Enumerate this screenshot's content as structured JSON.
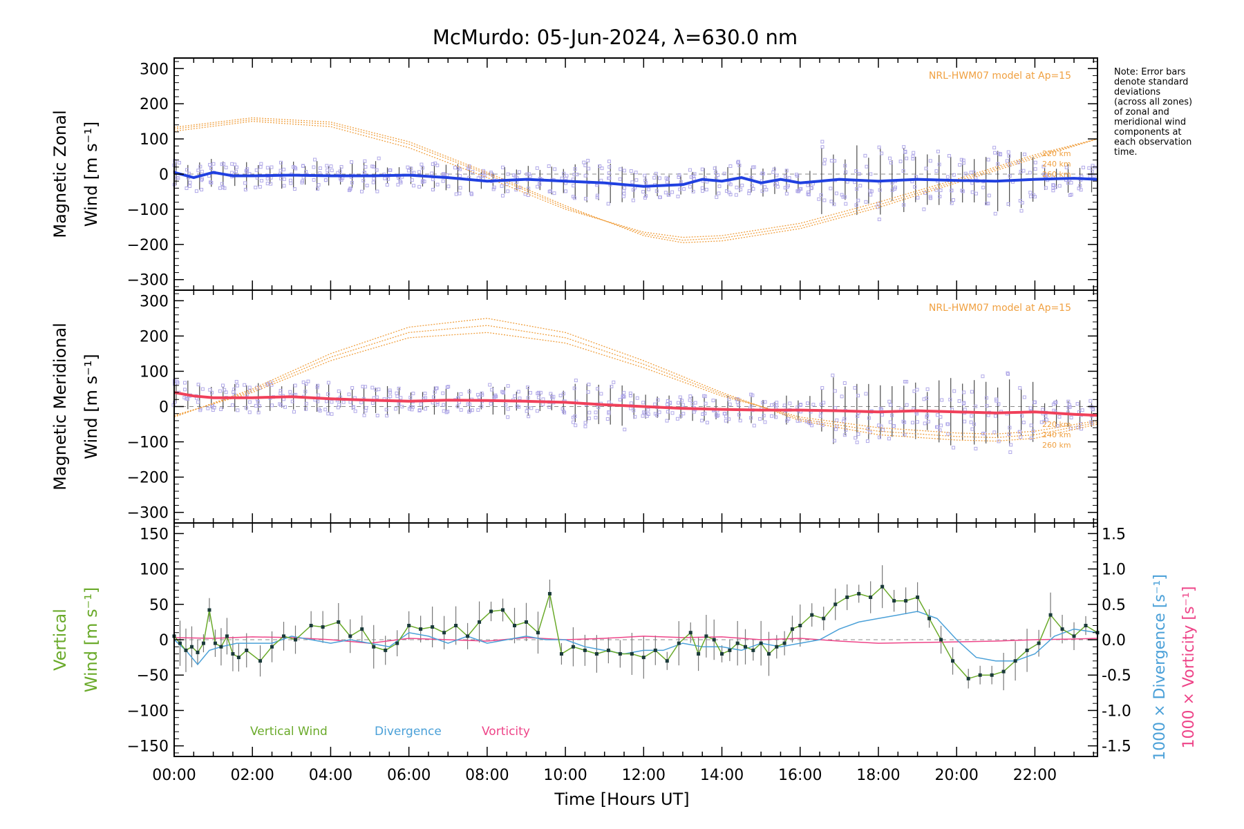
{
  "title": "McMurdo: 05-Jun-2024, λ=630.0 nm",
  "note": [
    "Note: Error bars",
    "denote standard",
    "deviations",
    "(across all zones)",
    "of zonal and",
    "meridional wind",
    "components at",
    "each observation",
    "time."
  ],
  "colors": {
    "model": "#f0a040",
    "zonal": "#2040e0",
    "meridional": "#f0405a",
    "scatter": "#b0a8e8",
    "errorbar": "#4a4a4a",
    "vertical": "#6aaa2a",
    "divergence": "#4aa0d8",
    "vorticity": "#ee4488"
  },
  "chart_data": [
    {
      "type": "line",
      "panel": "zonal",
      "ylabel": [
        "Magnetic Zonal",
        "Wind [m s⁻¹]"
      ],
      "ylim": [
        -330,
        330
      ],
      "yticks": [
        300,
        200,
        100,
        0,
        -100,
        -200,
        -300
      ],
      "xlim": [
        0,
        23.6
      ],
      "model_label": "NRL-HWM07 model at Ap=15",
      "model_altitudes": [
        "220 km",
        "240 km",
        "260 km"
      ],
      "model_curves": [
        {
          "altitude": "220 km",
          "x": [
            0,
            2,
            4,
            6,
            8,
            10,
            12,
            13,
            14,
            16,
            18,
            20,
            22,
            23.6
          ],
          "y": [
            122,
            150,
            135,
            75,
            -10,
            -100,
            -165,
            -180,
            -175,
            -140,
            -80,
            -15,
            55,
            100
          ]
        },
        {
          "altitude": "240 km",
          "x": [
            0,
            2,
            4,
            6,
            8,
            10,
            12,
            13,
            14,
            16,
            18,
            20,
            22,
            23.6
          ],
          "y": [
            128,
            155,
            142,
            85,
            0,
            -95,
            -170,
            -188,
            -182,
            -148,
            -88,
            -20,
            50,
            100
          ]
        },
        {
          "altitude": "260 km",
          "x": [
            0,
            2,
            4,
            6,
            8,
            10,
            12,
            13,
            14,
            16,
            18,
            20,
            22,
            23.6
          ],
          "y": [
            133,
            160,
            148,
            92,
            5,
            -90,
            -175,
            -195,
            -190,
            -155,
            -95,
            -25,
            45,
            100
          ]
        }
      ],
      "series": [
        {
          "name": "Zonal mean",
          "x": [
            0,
            0.5,
            1,
            1.5,
            2,
            3,
            4,
            5,
            6,
            7,
            8,
            9,
            10,
            11,
            12,
            13,
            13.5,
            14,
            14.5,
            15,
            15.5,
            16,
            16.5,
            17,
            18,
            19,
            20,
            21,
            22,
            23,
            23.6
          ],
          "y": [
            5,
            -10,
            5,
            -5,
            -5,
            -3,
            -5,
            -5,
            -3,
            -10,
            -20,
            -15,
            -20,
            -25,
            -35,
            -30,
            -15,
            -20,
            -10,
            -25,
            -15,
            -25,
            -20,
            -15,
            -20,
            -15,
            -18,
            -20,
            -15,
            -12,
            -15
          ]
        }
      ]
    },
    {
      "type": "line",
      "panel": "meridional",
      "ylabel": [
        "Magnetic Meridional",
        "Wind [m s⁻¹]"
      ],
      "ylim": [
        -330,
        330
      ],
      "yticks": [
        300,
        200,
        100,
        0,
        -100,
        -200,
        -300
      ],
      "xlim": [
        0,
        23.6
      ],
      "model_label": "NRL-HWM07 model at Ap=15",
      "model_altitudes": [
        "220 km",
        "240 km",
        "260 km"
      ],
      "model_curves": [
        {
          "altitude": "220 km",
          "x": [
            0,
            2,
            4,
            6,
            8,
            10,
            12,
            14,
            16,
            18,
            20,
            21,
            22,
            23.6
          ],
          "y": [
            -25,
            40,
            130,
            195,
            210,
            180,
            110,
            30,
            -30,
            -60,
            -75,
            -78,
            -70,
            -40
          ]
        },
        {
          "altitude": "240 km",
          "x": [
            0,
            2,
            4,
            6,
            8,
            10,
            12,
            14,
            16,
            18,
            20,
            21,
            22,
            23.6
          ],
          "y": [
            -28,
            45,
            140,
            210,
            230,
            195,
            120,
            35,
            -35,
            -70,
            -85,
            -88,
            -80,
            -45
          ]
        },
        {
          "altitude": "260 km",
          "x": [
            0,
            2,
            4,
            6,
            8,
            10,
            12,
            14,
            16,
            18,
            20,
            21,
            22,
            23.6
          ],
          "y": [
            -30,
            50,
            150,
            225,
            250,
            210,
            130,
            40,
            -40,
            -80,
            -95,
            -98,
            -90,
            -50
          ]
        }
      ],
      "series": [
        {
          "name": "Meridional mean",
          "x": [
            0,
            0.5,
            1,
            2,
            3,
            4,
            5,
            6,
            7,
            8,
            9,
            10,
            11,
            12,
            13,
            14,
            15,
            16,
            17,
            18,
            19,
            20,
            21,
            22,
            23,
            23.6
          ],
          "y": [
            40,
            30,
            25,
            25,
            28,
            22,
            18,
            15,
            18,
            17,
            15,
            12,
            5,
            0,
            -5,
            -8,
            -10,
            -10,
            -12,
            -15,
            -12,
            -15,
            -18,
            -15,
            -22,
            -25
          ]
        }
      ]
    },
    {
      "type": "line",
      "panel": "vertical",
      "ylabel": [
        "Vertical",
        "Wind [m s⁻¹]"
      ],
      "ylabel_right": [
        "1000 × Divergence [s⁻¹]",
        "1000 × Vorticity [s⁻¹]"
      ],
      "ylim": [
        -165,
        165
      ],
      "yticks": [
        150,
        100,
        50,
        0,
        -50,
        -100,
        -150
      ],
      "y2lim": [
        -1.65,
        1.65
      ],
      "y2ticks": [
        1.5,
        1.0,
        0.5,
        0.0,
        -0.5,
        -1.0,
        -1.5
      ],
      "xlim": [
        0,
        23.6
      ],
      "xticks": [
        "00:00",
        "02:00",
        "04:00",
        "06:00",
        "08:00",
        "10:00",
        "12:00",
        "14:00",
        "16:00",
        "18:00",
        "20:00",
        "22:00"
      ],
      "xtick_values": [
        0,
        2,
        4,
        6,
        8,
        10,
        12,
        14,
        16,
        18,
        20,
        22
      ],
      "xlabel": "Time [Hours UT]",
      "legend": [
        "Vertical Wind",
        "Divergence",
        "Vorticity"
      ],
      "series": [
        {
          "name": "Vertical Wind",
          "axis": "left",
          "x": [
            0,
            0.15,
            0.3,
            0.45,
            0.6,
            0.75,
            0.9,
            1.05,
            1.2,
            1.35,
            1.5,
            1.65,
            1.85,
            2.2,
            2.5,
            2.8,
            3.1,
            3.5,
            3.8,
            4.2,
            4.5,
            4.8,
            5.1,
            5.4,
            5.7,
            6.0,
            6.3,
            6.6,
            6.9,
            7.2,
            7.5,
            7.8,
            8.1,
            8.4,
            8.7,
            9.0,
            9.3,
            9.6,
            9.9,
            10.2,
            10.5,
            10.8,
            11.1,
            11.4,
            11.7,
            12.0,
            12.3,
            12.6,
            12.9,
            13.2,
            13.4,
            13.6,
            13.8,
            14.0,
            14.2,
            14.4,
            14.6,
            14.8,
            15.0,
            15.2,
            15.4,
            15.6,
            15.8,
            16.0,
            16.3,
            16.6,
            16.9,
            17.2,
            17.5,
            17.8,
            18.1,
            18.4,
            18.7,
            19.0,
            19.3,
            19.6,
            19.9,
            20.3,
            20.6,
            20.9,
            21.2,
            21.5,
            21.8,
            22.1,
            22.4,
            22.7,
            23.0,
            23.3,
            23.6
          ],
          "y": [
            5,
            -5,
            -15,
            -10,
            -18,
            -5,
            42,
            -5,
            -10,
            5,
            -20,
            -25,
            -15,
            -30,
            -10,
            5,
            0,
            20,
            18,
            25,
            5,
            15,
            -10,
            -15,
            -5,
            20,
            15,
            18,
            10,
            20,
            5,
            25,
            40,
            42,
            20,
            25,
            10,
            65,
            -20,
            -10,
            -15,
            -20,
            -15,
            -20,
            -20,
            -25,
            -15,
            -30,
            -5,
            10,
            -20,
            5,
            0,
            -20,
            -15,
            -5,
            -10,
            -15,
            -5,
            -20,
            -10,
            -5,
            15,
            20,
            35,
            30,
            50,
            60,
            65,
            60,
            75,
            55,
            55,
            60,
            30,
            0,
            -30,
            -55,
            -50,
            -50,
            -45,
            -30,
            -15,
            -5,
            35,
            15,
            5,
            20,
            10
          ]
        },
        {
          "name": "Divergence",
          "axis": "right",
          "x": [
            0,
            0.3,
            0.6,
            0.9,
            1.2,
            1.6,
            2.0,
            2.5,
            3.0,
            3.5,
            4.0,
            4.5,
            5.0,
            5.5,
            6.0,
            6.5,
            7.0,
            7.5,
            8.0,
            8.5,
            9.0,
            9.5,
            10.0,
            10.5,
            11.0,
            11.5,
            12.0,
            12.5,
            13.0,
            13.5,
            14.0,
            14.5,
            15.0,
            15.5,
            16.0,
            16.5,
            17.0,
            17.5,
            18.0,
            18.5,
            19.0,
            19.5,
            20.0,
            20.5,
            21.0,
            21.5,
            22.0,
            22.5,
            23.0,
            23.6
          ],
          "y": [
            0.0,
            -0.15,
            -0.35,
            -0.15,
            -0.1,
            -0.05,
            -0.05,
            -0.05,
            0.05,
            0.0,
            -0.05,
            0.0,
            -0.05,
            -0.1,
            0.1,
            0.05,
            -0.05,
            0.05,
            -0.05,
            0.0,
            0.05,
            0.0,
            0.0,
            -0.1,
            -0.15,
            -0.2,
            -0.15,
            -0.15,
            -0.05,
            -0.1,
            -0.1,
            -0.15,
            -0.05,
            -0.1,
            -0.05,
            0.0,
            0.15,
            0.25,
            0.3,
            0.35,
            0.4,
            0.3,
            0.0,
            -0.25,
            -0.3,
            -0.3,
            -0.2,
            0.05,
            0.15,
            0.1
          ]
        },
        {
          "name": "Vorticity",
          "axis": "right",
          "x": [
            0,
            1,
            2,
            3,
            4,
            5,
            6,
            7,
            8,
            9,
            10,
            11,
            12,
            13,
            14,
            15,
            16,
            17,
            18,
            19,
            20,
            21,
            22,
            23,
            23.6
          ],
          "y": [
            0.03,
            0.02,
            0.04,
            0.03,
            0.0,
            -0.05,
            0.02,
            0.0,
            -0.02,
            0.03,
            0.0,
            0.02,
            0.05,
            0.03,
            0.04,
            0.0,
            0.02,
            -0.02,
            -0.05,
            -0.04,
            -0.03,
            -0.02,
            0.0,
            0.01,
            0.02
          ]
        }
      ]
    }
  ]
}
